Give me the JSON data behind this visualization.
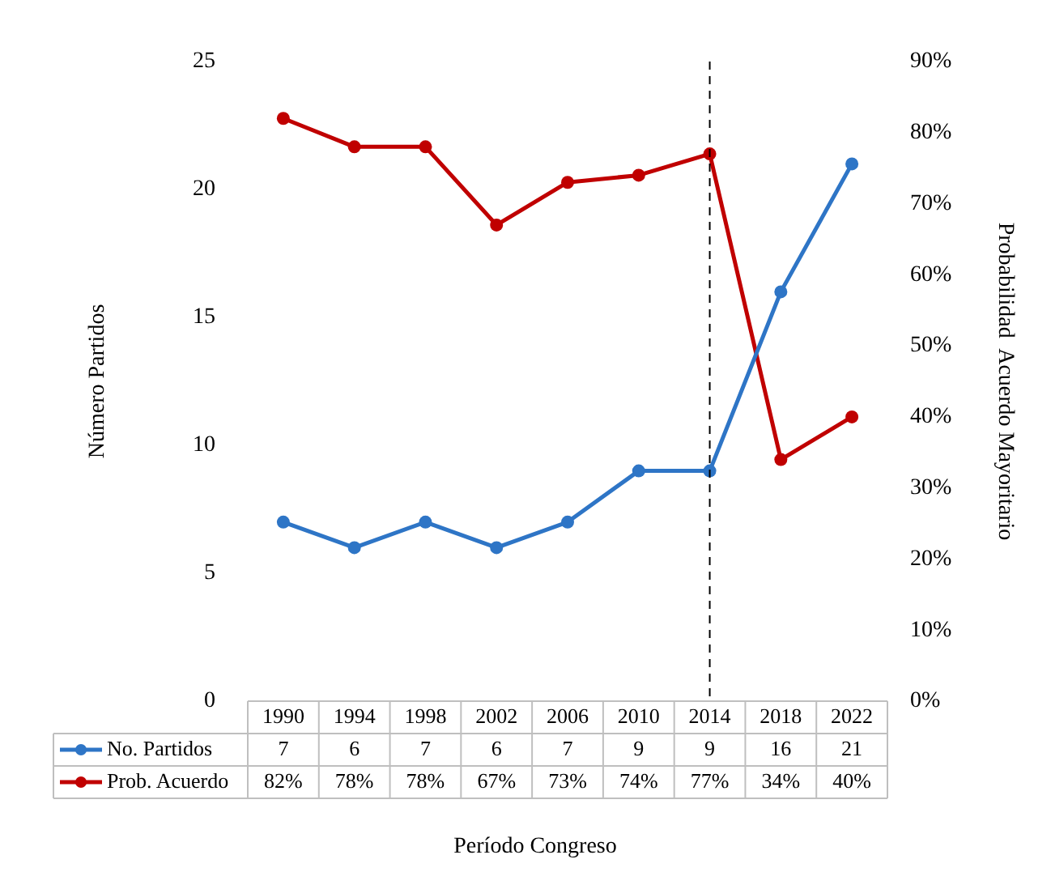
{
  "chart_data": {
    "type": "line",
    "xlabel": "Período Congreso",
    "ylabel": "Número Partidos",
    "y2label": "Probabilidad  Acuerdo Mayoritario",
    "categories": [
      "1990",
      "1994",
      "1998",
      "2002",
      "2006",
      "2010",
      "2014",
      "2018",
      "2022"
    ],
    "series": [
      {
        "name": "No. Partidos",
        "color": "#2e75c6",
        "values": [
          7,
          6,
          7,
          6,
          7,
          9,
          9,
          16,
          21
        ],
        "value_labels": [
          "7",
          "6",
          "7",
          "6",
          "7",
          "9",
          "9",
          "16",
          "21"
        ]
      },
      {
        "name": "Prob. Acuerdo",
        "color": "#c00000",
        "axis": "y2",
        "values": [
          82,
          78,
          78,
          67,
          73,
          74,
          77,
          34,
          40
        ],
        "value_labels": [
          "82%",
          "78%",
          "78%",
          "67%",
          "73%",
          "74%",
          "77%",
          "34%",
          "40%"
        ]
      }
    ],
    "ylim": [
      0,
      25
    ],
    "yticks": [
      0,
      5,
      10,
      15,
      20,
      25
    ],
    "y2lim": [
      0,
      90
    ],
    "y2ticks": [
      {
        "value": 0,
        "label": "0%"
      },
      {
        "value": 10,
        "label": "10%"
      },
      {
        "value": 20,
        "label": "20%"
      },
      {
        "value": 30,
        "label": "30%"
      },
      {
        "value": 40,
        "label": "40%"
      },
      {
        "value": 50,
        "label": "50%"
      },
      {
        "value": 60,
        "label": "60%"
      },
      {
        "value": 70,
        "label": "70%"
      },
      {
        "value": 80,
        "label": "80%"
      },
      {
        "value": 90,
        "label": "90%"
      }
    ],
    "ref_lines": [
      {
        "axis": "x",
        "value": "2014",
        "line_style": "dashed",
        "color": "#000000"
      }
    ],
    "grid": false,
    "legend": "bottom",
    "marker": "circle",
    "line_style": "solid"
  }
}
